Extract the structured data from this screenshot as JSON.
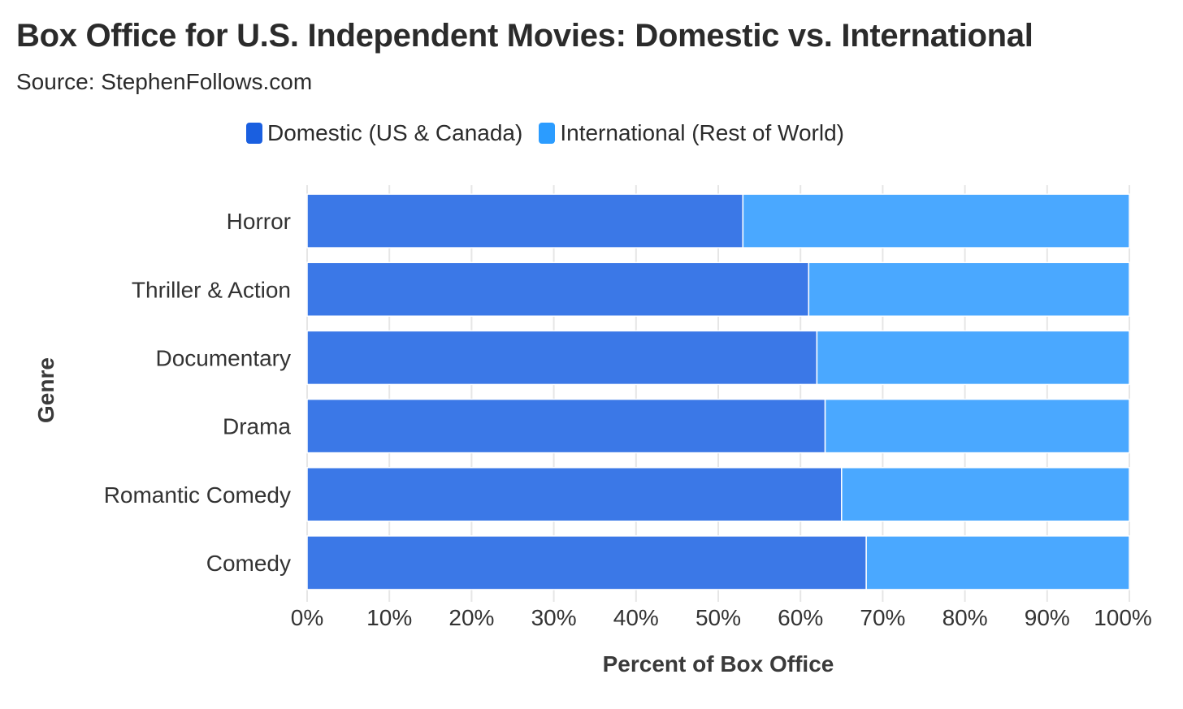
{
  "title": "Box Office for U.S. Independent Movies: Domestic vs. International",
  "subtitle": "Source: StephenFollows.com",
  "chart_data": {
    "type": "bar",
    "orientation": "horizontal",
    "stacked": true,
    "categories": [
      "Horror",
      "Thriller & Action",
      "Documentary",
      "Drama",
      "Romantic Comedy",
      "Comedy"
    ],
    "series": [
      {
        "name": "Domestic (US & Canada)",
        "color": "#3b78e7",
        "swatch_color": "#1a5fe0",
        "values": [
          53,
          61,
          62,
          63,
          65,
          68
        ]
      },
      {
        "name": "International (Rest of World)",
        "color": "#4aa8ff",
        "swatch_color": "#2b9cff",
        "values": [
          47,
          39,
          38,
          37,
          35,
          32
        ]
      }
    ],
    "xlabel": "Percent of Box Office",
    "ylabel": "Genre",
    "xlim": [
      0,
      100
    ],
    "xticks": [
      "0%",
      "10%",
      "20%",
      "30%",
      "40%",
      "50%",
      "60%",
      "70%",
      "80%",
      "90%",
      "100%"
    ],
    "grid": true,
    "legend_position": "top"
  }
}
